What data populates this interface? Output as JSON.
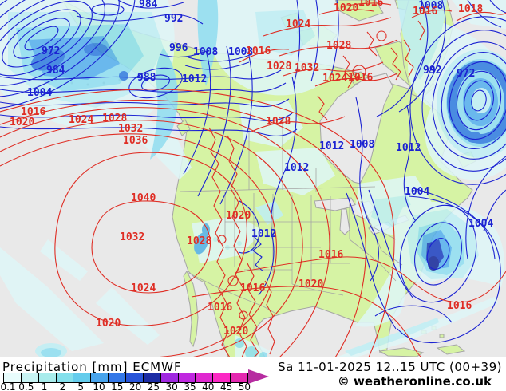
{
  "legend": {
    "title": "Precipitation [mm] ECMWF",
    "datetime": "Sa 11-01-2025 12..15 UTC (00+39)",
    "copyright": "© weatheronline.co.uk",
    "scale": {
      "values": [
        "0.1",
        "0.5",
        "1",
        "2",
        "5",
        "10",
        "15",
        "20",
        "25",
        "30",
        "35",
        "40",
        "45",
        "50"
      ],
      "colors": [
        "#E8FCFC",
        "#C8F4F4",
        "#A8ECEC",
        "#84E0EC",
        "#64CCEC",
        "#48A4EC",
        "#3478E8",
        "#2854D8",
        "#1C2CA4",
        "#A028E0",
        "#C028E0",
        "#E028D0",
        "#FC28C4",
        "#E428B0"
      ],
      "arrow_color": "#B62CA0"
    }
  },
  "map": {
    "colors": {
      "ocean": "#E9E9E9",
      "land": "#D6F3A4",
      "coastline": "#A5A5A5",
      "isobar_blue": "#1B22D2",
      "isobar_red": "#DF2D24"
    },
    "pressure_labels": [
      [
        "972",
        "b",
        52,
        68
      ],
      [
        "984",
        "b",
        58,
        92
      ],
      [
        "1004",
        "b",
        34,
        120
      ],
      [
        "988",
        "b",
        172,
        101
      ],
      [
        "1012",
        "b",
        228,
        103
      ],
      [
        "984",
        "b",
        174,
        9
      ],
      [
        "992",
        "b",
        206,
        27
      ],
      [
        "996",
        "b",
        212,
        64
      ],
      [
        "1008",
        "b",
        242,
        69
      ],
      [
        "1008",
        "b",
        286,
        69
      ],
      [
        "1012",
        "b",
        400,
        187
      ],
      [
        "1008",
        "b",
        438,
        185
      ],
      [
        "1012",
        "b",
        496,
        189
      ],
      [
        "1012",
        "b",
        356,
        214
      ],
      [
        "1012",
        "b",
        315,
        297
      ],
      [
        "1004",
        "b",
        507,
        244
      ],
      [
        "1004",
        "b",
        587,
        284
      ],
      [
        "992",
        "b",
        530,
        92
      ],
      [
        "972",
        "b",
        572,
        96
      ],
      [
        "1008",
        "b",
        524,
        11
      ],
      [
        "1016",
        "r",
        26,
        144
      ],
      [
        "1020",
        "r",
        12,
        157
      ],
      [
        "1024",
        "r",
        86,
        154
      ],
      [
        "1028",
        "r",
        128,
        152
      ],
      [
        "1032",
        "r",
        148,
        165
      ],
      [
        "1036",
        "r",
        154,
        180
      ],
      [
        "1040",
        "r",
        164,
        252
      ],
      [
        "1032",
        "r",
        150,
        301
      ],
      [
        "1024",
        "r",
        164,
        365
      ],
      [
        "1020",
        "r",
        120,
        409
      ],
      [
        "1016",
        "r",
        301,
        365
      ],
      [
        "1016",
        "r",
        399,
        323
      ],
      [
        "1020",
        "r",
        374,
        360
      ],
      [
        "1016",
        "r",
        260,
        389
      ],
      [
        "1020",
        "r",
        280,
        419
      ],
      [
        "1016",
        "r",
        560,
        387
      ],
      [
        "1020",
        "r",
        283,
        274
      ],
      [
        "1028",
        "r",
        234,
        306
      ],
      [
        "1016",
        "r",
        449,
        7
      ],
      [
        "1020",
        "r",
        418,
        14
      ],
      [
        "1024",
        "r",
        358,
        34
      ],
      [
        "1028",
        "r",
        409,
        61
      ],
      [
        "1032",
        "r",
        369,
        89
      ],
      [
        "1028",
        "r",
        334,
        87
      ],
      [
        "1024",
        "r",
        404,
        102
      ],
      [
        "1016",
        "r",
        436,
        101
      ],
      [
        "1016",
        "r",
        517,
        18
      ],
      [
        "1018",
        "r",
        574,
        15
      ],
      [
        "1028",
        "r",
        333,
        156
      ],
      [
        "1016",
        "r",
        308,
        68
      ]
    ]
  }
}
